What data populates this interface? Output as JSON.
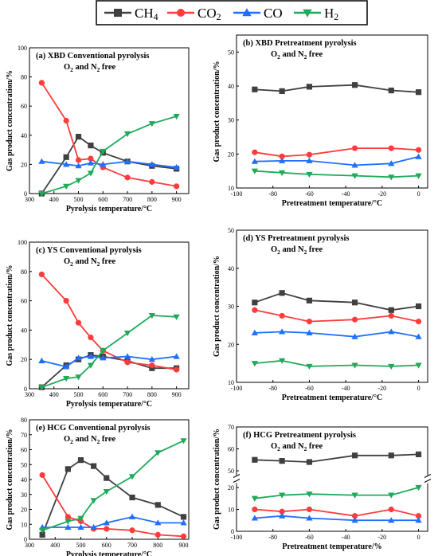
{
  "legend": [
    {
      "key": "ch4",
      "label": "CH",
      "sub": "4",
      "color": "#404040",
      "marker": "square"
    },
    {
      "key": "co2",
      "label": "CO",
      "sub": "2",
      "color": "#ff3b3b",
      "marker": "circle"
    },
    {
      "key": "co",
      "label": "CO",
      "sub": "",
      "color": "#1f6fff",
      "marker": "triangle-up"
    },
    {
      "key": "h2",
      "label": "H",
      "sub": "2",
      "color": "#1faa5a",
      "marker": "triangle-down"
    }
  ],
  "chart_data": [
    {
      "id": "a",
      "type": "line",
      "title": "(a) XBD Conventional pyrolysis",
      "subtitle": {
        "a": "O",
        "sa": "2",
        "b": " and N",
        "sb": "2",
        "c": " free"
      },
      "xlabel": "Pyrolysis temperature/°C",
      "ylabel": "Gas product concentration/%",
      "xlim": [
        300,
        950
      ],
      "ylim": [
        0,
        100
      ],
      "xticks": [
        300,
        400,
        500,
        600,
        700,
        800,
        900
      ],
      "yticks": [
        0,
        20,
        40,
        60,
        80,
        100
      ],
      "x": [
        350,
        450,
        500,
        550,
        600,
        700,
        800,
        900
      ],
      "series": [
        {
          "key": "ch4",
          "values": [
            0,
            25,
            39,
            33,
            28,
            22,
            19,
            17
          ]
        },
        {
          "key": "co2",
          "values": [
            76,
            50,
            23,
            24,
            18,
            11,
            8,
            5
          ]
        },
        {
          "key": "co",
          "values": [
            22,
            20,
            19,
            21,
            20,
            22,
            20,
            18
          ]
        },
        {
          "key": "h2",
          "values": [
            0,
            5,
            9,
            14,
            29,
            41,
            48,
            53
          ]
        }
      ]
    },
    {
      "id": "b",
      "type": "line",
      "title": "(b) XBD Pretreatment pyrolysis",
      "subtitle": {
        "a": "O",
        "sa": "2",
        "b": " and N",
        "sb": "2",
        "c": " free"
      },
      "xlabel": "Pretreatment temperature/°C",
      "ylabel": "Gas product concentration/%",
      "xlim": [
        -100,
        5
      ],
      "ylim": [
        10,
        55
      ],
      "xticks": [
        -100,
        -80,
        -60,
        -40,
        -20,
        0
      ],
      "yticks": [
        10,
        20,
        30,
        40,
        50
      ],
      "x": [
        -90,
        -75,
        -60,
        -35,
        -15,
        0
      ],
      "series": [
        {
          "key": "ch4",
          "values": [
            39,
            38.5,
            39.8,
            40.3,
            38.7,
            38.2
          ]
        },
        {
          "key": "co2",
          "values": [
            20.5,
            19.3,
            19.8,
            21.7,
            21.7,
            21.2
          ]
        },
        {
          "key": "co",
          "values": [
            17.8,
            18,
            18,
            16.7,
            17.2,
            19.2
          ]
        },
        {
          "key": "h2",
          "values": [
            15,
            14.5,
            14,
            13.6,
            13.2,
            13.6
          ]
        }
      ]
    },
    {
      "id": "c",
      "type": "line",
      "title": "(c) YS Conventional pyrolysis",
      "subtitle": {
        "a": "O",
        "sa": "2",
        "b": " and N",
        "sb": "2",
        "c": " free"
      },
      "xlabel": "Pyrolysis temperature/°C",
      "ylabel": "Gas product concentration/%",
      "xlim": [
        300,
        950
      ],
      "ylim": [
        0,
        100
      ],
      "xticks": [
        300,
        400,
        500,
        600,
        700,
        800,
        900
      ],
      "yticks": [
        0,
        20,
        40,
        60,
        80,
        100
      ],
      "x": [
        350,
        450,
        500,
        550,
        600,
        700,
        800,
        900
      ],
      "series": [
        {
          "key": "ch4",
          "values": [
            1,
            16,
            20,
            23,
            22,
            19,
            14,
            14
          ]
        },
        {
          "key": "co2",
          "values": [
            78,
            60,
            45,
            35,
            26,
            18,
            16,
            13
          ]
        },
        {
          "key": "co",
          "values": [
            19,
            15,
            21,
            22,
            21,
            22,
            20,
            22
          ]
        },
        {
          "key": "h2",
          "values": [
            1,
            7,
            8,
            16,
            26,
            38,
            50,
            49
          ]
        }
      ]
    },
    {
      "id": "d",
      "type": "line",
      "title": "(d) YS Pretreatment pyrolysis",
      "subtitle": {
        "a": "O",
        "sa": "2",
        "b": " and N",
        "sb": "2",
        "c": " free"
      },
      "xlabel": "Pretreatment temperature/°C",
      "ylabel": "Gas product concentration/%",
      "xlim": [
        -100,
        5
      ],
      "ylim": [
        10,
        50
      ],
      "xticks": [
        -100,
        -80,
        -60,
        -40,
        -20,
        0
      ],
      "yticks": [
        10,
        20,
        30,
        40,
        50
      ],
      "x": [
        -90,
        -75,
        -60,
        -35,
        -15,
        0
      ],
      "series": [
        {
          "key": "ch4",
          "values": [
            31,
            33.5,
            31.5,
            31,
            29,
            30
          ]
        },
        {
          "key": "co2",
          "values": [
            29,
            27.5,
            26,
            26.5,
            27.5,
            26
          ]
        },
        {
          "key": "co",
          "values": [
            23,
            23.3,
            23,
            22,
            23.3,
            22
          ]
        },
        {
          "key": "h2",
          "values": [
            15,
            15.7,
            14.2,
            14.5,
            14.2,
            14.5
          ]
        }
      ]
    },
    {
      "id": "e",
      "type": "line",
      "title": "(e) HCG Conventional pyrolysis",
      "subtitle": {
        "a": "O",
        "sa": "2",
        "b": " and N",
        "sb": "2",
        "c": " free"
      },
      "xlabel": "Pyrolysis temperature/°C",
      "ylabel": "Gas product concentration/%",
      "xlim": [
        300,
        920
      ],
      "ylim": [
        0,
        80
      ],
      "xticks": [
        300,
        400,
        500,
        600,
        700,
        800,
        900
      ],
      "yticks": [
        0,
        10,
        20,
        30,
        40,
        50,
        60,
        70,
        80
      ],
      "x": [
        350,
        450,
        500,
        550,
        600,
        700,
        800,
        900
      ],
      "series": [
        {
          "key": "ch4",
          "values": [
            3,
            47,
            53,
            49,
            41,
            28,
            23,
            15
          ]
        },
        {
          "key": "co2",
          "values": [
            43,
            15,
            12,
            7,
            7,
            6,
            3,
            2
          ]
        },
        {
          "key": "co",
          "values": [
            8,
            8,
            8,
            8,
            11,
            15,
            11,
            11
          ]
        },
        {
          "key": "h2",
          "values": [
            6,
            12,
            14,
            26,
            32,
            42,
            58,
            66
          ]
        }
      ]
    },
    {
      "id": "f",
      "type": "line",
      "title": "(f) HCG Pretreatment pyrolysis",
      "subtitle": {
        "a": "O",
        "sa": "2",
        "b": " and N",
        "sb": "2",
        "c": " free"
      },
      "xlabel": "Pretreatment temperature/%",
      "ylabel": "Gas product concentration/%",
      "xlim": [
        -100,
        5
      ],
      "ylim": [
        0,
        70
      ],
      "axis_break_between": [
        20,
        50
      ],
      "xticks": [
        -100,
        -80,
        -60,
        -40,
        -20,
        0
      ],
      "yticks": [
        0,
        10,
        20,
        50,
        60,
        70
      ],
      "x": [
        -90,
        -75,
        -60,
        -35,
        -15,
        0
      ],
      "series": [
        {
          "key": "ch4",
          "values": [
            55,
            54.5,
            54,
            57,
            57,
            57.5
          ]
        },
        {
          "key": "co2",
          "values": [
            10,
            9,
            10,
            7,
            10,
            7
          ]
        },
        {
          "key": "co",
          "values": [
            6,
            7,
            6,
            5,
            5,
            5
          ]
        },
        {
          "key": "h2",
          "values": [
            15,
            16.5,
            17,
            16.5,
            16.5,
            20
          ]
        }
      ]
    }
  ]
}
